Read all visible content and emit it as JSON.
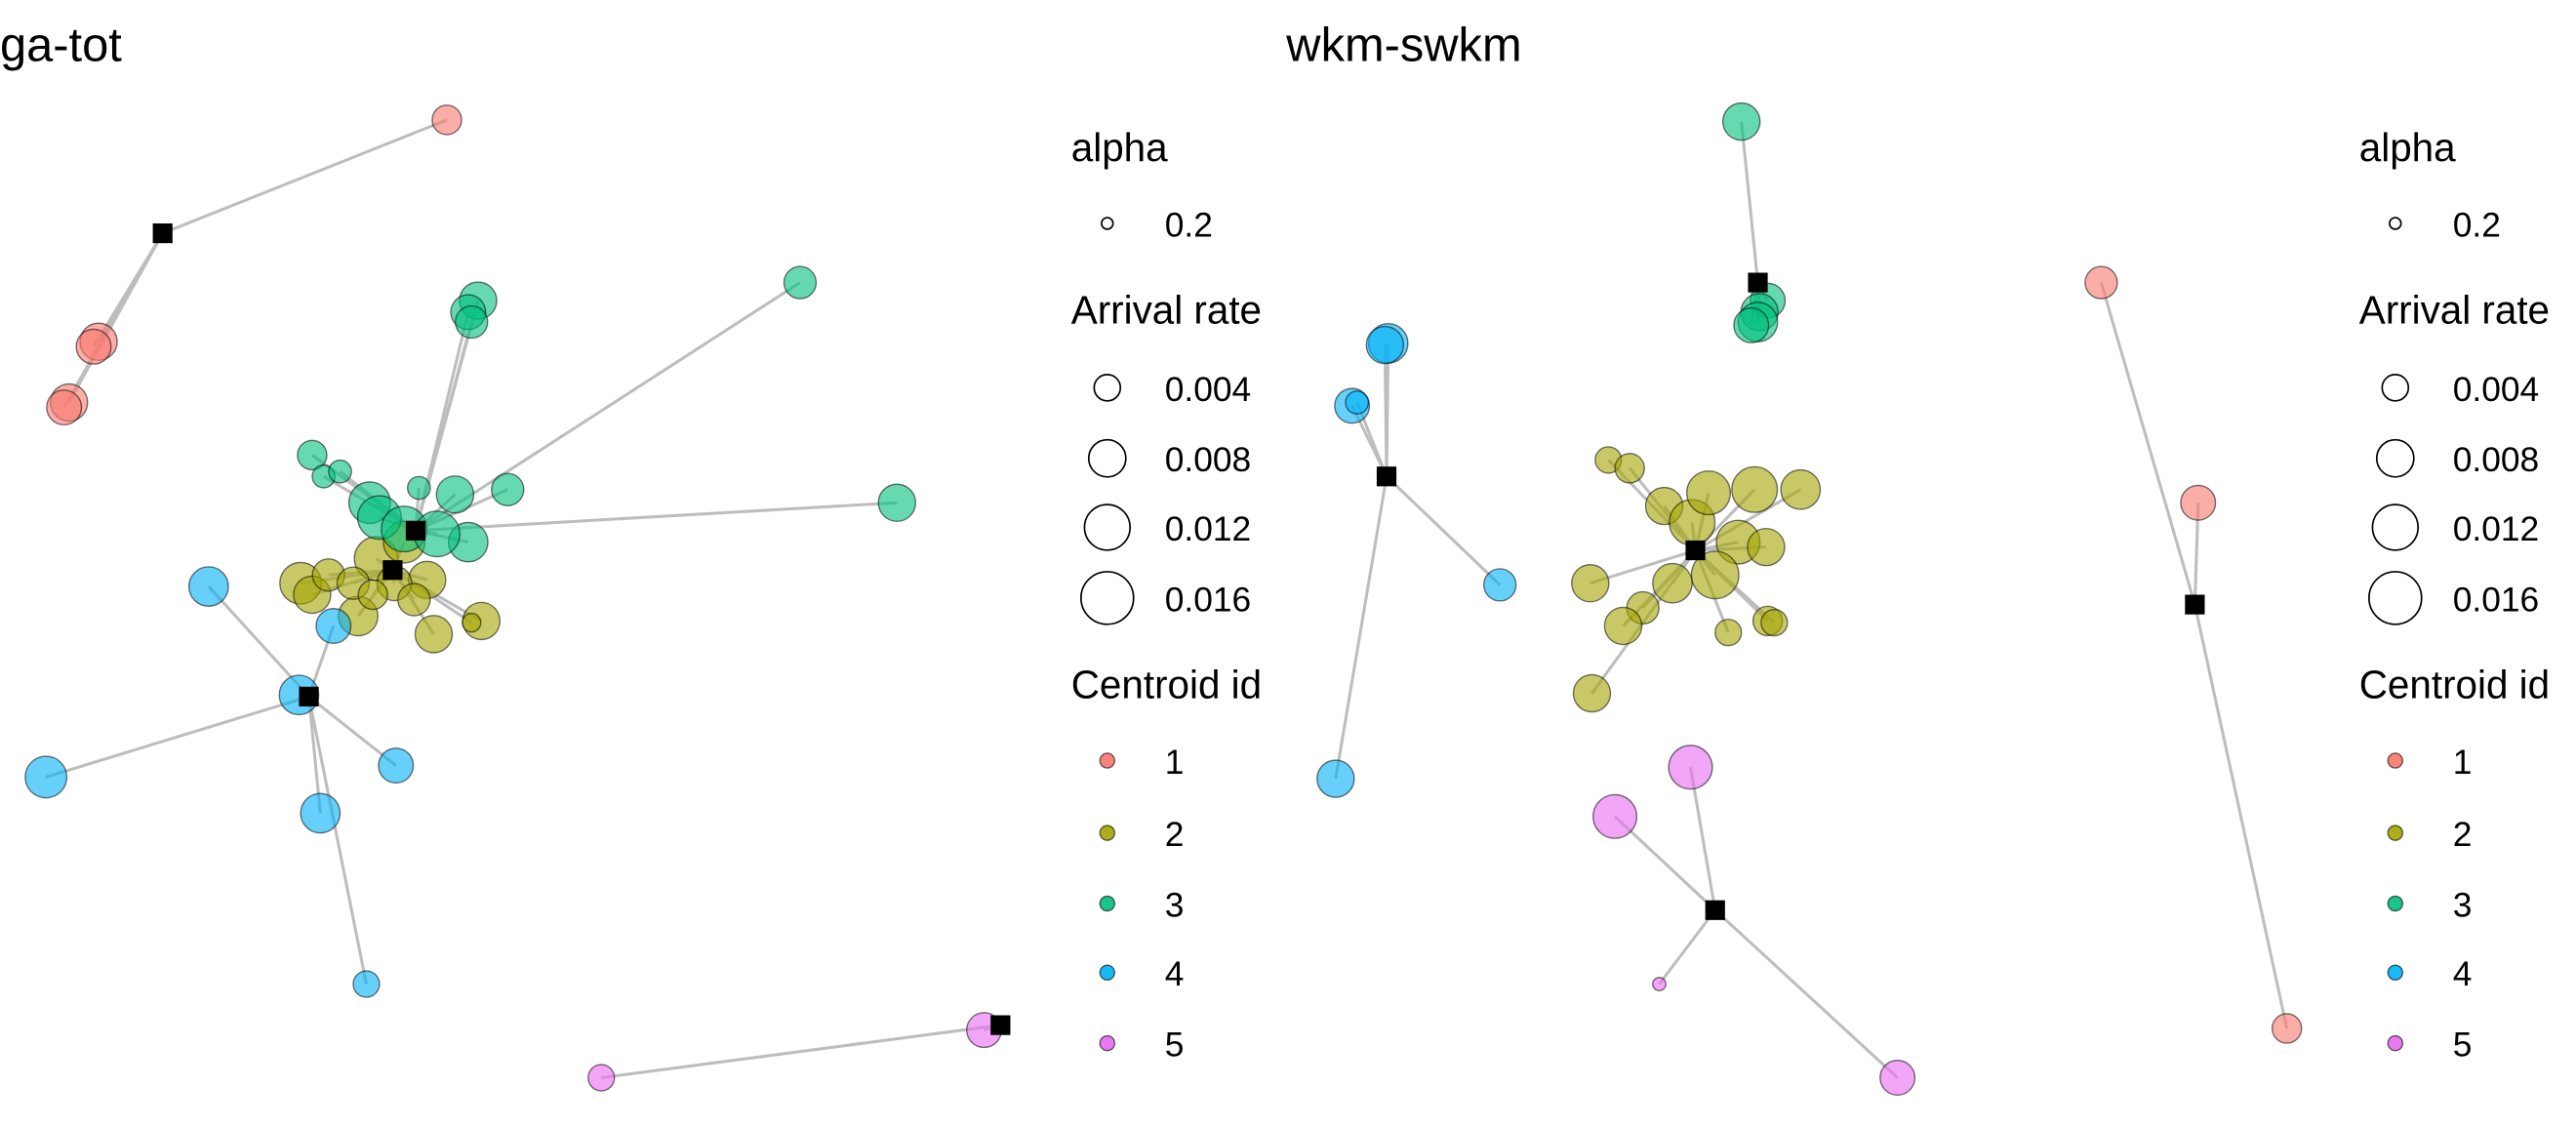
{
  "colors": {
    "centroid_1": "#F8766D",
    "centroid_2": "#A3A500",
    "centroid_3": "#00BF7D",
    "centroid_4": "#00B0F6",
    "centroid_5": "#E76BF3",
    "edge": "#bdbdbd",
    "centroid_marker": "#000000"
  },
  "legend": {
    "alpha_title": "alpha",
    "alpha_value": "0.2",
    "size_title": "Arrival rate",
    "size_entries": [
      "0.004",
      "0.008",
      "0.012",
      "0.016"
    ],
    "color_title": "Centroid id",
    "color_entries": [
      "1",
      "2",
      "3",
      "4",
      "5"
    ]
  },
  "chart_data": [
    {
      "type": "scatter",
      "title": "ga-tot",
      "xlabel": "",
      "ylabel": "",
      "grid": false,
      "axes_shown": false,
      "legend_position": "right",
      "series": [
        {
          "name": "1",
          "centroid": {
            "x": 99,
            "y": 142
          },
          "points": [
            {
              "x": 272,
              "y": 73,
              "rate": 0.005
            },
            {
              "x": 60,
              "y": 208,
              "rate": 0.008
            },
            {
              "x": 57,
              "y": 211,
              "rate": 0.007
            },
            {
              "x": 42,
              "y": 245,
              "rate": 0.008
            },
            {
              "x": 39,
              "y": 248,
              "rate": 0.007
            }
          ]
        },
        {
          "name": "2",
          "centroid": {
            "x": 239,
            "y": 347
          },
          "points": [
            {
              "x": 183,
              "y": 355,
              "rate": 0.01
            },
            {
              "x": 190,
              "y": 362,
              "rate": 0.008
            },
            {
              "x": 200,
              "y": 350,
              "rate": 0.006
            },
            {
              "x": 218,
              "y": 375,
              "rate": 0.009
            },
            {
              "x": 229,
              "y": 340,
              "rate": 0.011
            },
            {
              "x": 246,
              "y": 330,
              "rate": 0.01
            },
            {
              "x": 260,
              "y": 353,
              "rate": 0.008
            },
            {
              "x": 240,
              "y": 355,
              "rate": 0.007
            },
            {
              "x": 252,
              "y": 365,
              "rate": 0.006
            },
            {
              "x": 264,
              "y": 386,
              "rate": 0.008
            },
            {
              "x": 293,
              "y": 378,
              "rate": 0.008
            },
            {
              "x": 287,
              "y": 379,
              "rate": 0.002
            },
            {
              "x": 215,
              "y": 355,
              "rate": 0.006
            },
            {
              "x": 227,
              "y": 362,
              "rate": 0.005
            }
          ]
        },
        {
          "name": "3",
          "centroid": {
            "x": 253,
            "y": 323
          },
          "points": [
            {
              "x": 487,
              "y": 172,
              "rate": 0.006
            },
            {
              "x": 546,
              "y": 306,
              "rate": 0.008
            },
            {
              "x": 291,
              "y": 183,
              "rate": 0.008
            },
            {
              "x": 285,
              "y": 190,
              "rate": 0.007
            },
            {
              "x": 287,
              "y": 196,
              "rate": 0.006
            },
            {
              "x": 190,
              "y": 277,
              "rate": 0.005
            },
            {
              "x": 197,
              "y": 290,
              "rate": 0.003
            },
            {
              "x": 207,
              "y": 287,
              "rate": 0.003
            },
            {
              "x": 225,
              "y": 306,
              "rate": 0.01
            },
            {
              "x": 231,
              "y": 315,
              "rate": 0.011
            },
            {
              "x": 246,
              "y": 322,
              "rate": 0.012
            },
            {
              "x": 255,
              "y": 297,
              "rate": 0.003
            },
            {
              "x": 277,
              "y": 301,
              "rate": 0.008
            },
            {
              "x": 285,
              "y": 330,
              "rate": 0.009
            },
            {
              "x": 309,
              "y": 298,
              "rate": 0.006
            },
            {
              "x": 266,
              "y": 325,
              "rate": 0.012
            }
          ]
        },
        {
          "name": "4",
          "centroid": {
            "x": 188,
            "y": 424
          },
          "points": [
            {
              "x": 127,
              "y": 357,
              "rate": 0.009
            },
            {
              "x": 203,
              "y": 381,
              "rate": 0.007
            },
            {
              "x": 182,
              "y": 423,
              "rate": 0.009
            },
            {
              "x": 28,
              "y": 473,
              "rate": 0.01
            },
            {
              "x": 241,
              "y": 466,
              "rate": 0.007
            },
            {
              "x": 195,
              "y": 495,
              "rate": 0.009
            },
            {
              "x": 223,
              "y": 599,
              "rate": 0.004
            }
          ]
        },
        {
          "name": "5",
          "centroid": {
            "x": 609,
            "y": 624
          },
          "points": [
            {
              "x": 599,
              "y": 627,
              "rate": 0.007
            },
            {
              "x": 366,
              "y": 656,
              "rate": 0.004
            }
          ]
        }
      ]
    },
    {
      "type": "scatter",
      "title": "wkm-swkm",
      "xlabel": "",
      "ylabel": "",
      "grid": false,
      "axes_shown": false,
      "legend_position": "right",
      "series": [
        {
          "name": "1",
          "centroid": {
            "x": 1336,
            "y": 368
          },
          "points": [
            {
              "x": 1279,
              "y": 172,
              "rate": 0.006
            },
            {
              "x": 1338,
              "y": 306,
              "rate": 0.007
            },
            {
              "x": 1392,
              "y": 626,
              "rate": 0.005
            }
          ]
        },
        {
          "name": "2",
          "centroid": {
            "x": 1032,
            "y": 335
          },
          "points": [
            {
              "x": 979,
              "y": 280,
              "rate": 0.004
            },
            {
              "x": 992,
              "y": 285,
              "rate": 0.005
            },
            {
              "x": 1013,
              "y": 308,
              "rate": 0.008
            },
            {
              "x": 1030,
              "y": 318,
              "rate": 0.012
            },
            {
              "x": 1040,
              "y": 300,
              "rate": 0.011
            },
            {
              "x": 1068,
              "y": 298,
              "rate": 0.012
            },
            {
              "x": 1096,
              "y": 298,
              "rate": 0.009
            },
            {
              "x": 1058,
              "y": 330,
              "rate": 0.011
            },
            {
              "x": 1044,
              "y": 350,
              "rate": 0.013
            },
            {
              "x": 1075,
              "y": 333,
              "rate": 0.008
            },
            {
              "x": 1018,
              "y": 355,
              "rate": 0.009
            },
            {
              "x": 968,
              "y": 355,
              "rate": 0.008
            },
            {
              "x": 1000,
              "y": 370,
              "rate": 0.006
            },
            {
              "x": 988,
              "y": 381,
              "rate": 0.008
            },
            {
              "x": 1052,
              "y": 385,
              "rate": 0.004
            },
            {
              "x": 1076,
              "y": 378,
              "rate": 0.005
            },
            {
              "x": 1080,
              "y": 379,
              "rate": 0.004
            },
            {
              "x": 969,
              "y": 422,
              "rate": 0.008
            }
          ]
        },
        {
          "name": "3",
          "centroid": {
            "x": 1070,
            "y": 172
          },
          "points": [
            {
              "x": 1060,
              "y": 74,
              "rate": 0.008
            },
            {
              "x": 1076,
              "y": 183,
              "rate": 0.007
            },
            {
              "x": 1071,
              "y": 190,
              "rate": 0.008
            },
            {
              "x": 1070,
              "y": 196,
              "rate": 0.009
            },
            {
              "x": 1066,
              "y": 198,
              "rate": 0.007
            }
          ]
        },
        {
          "name": "4",
          "centroid": {
            "x": 844,
            "y": 290
          },
          "points": [
            {
              "x": 845,
              "y": 209,
              "rate": 0.009
            },
            {
              "x": 843,
              "y": 210,
              "rate": 0.008
            },
            {
              "x": 823,
              "y": 247,
              "rate": 0.007
            },
            {
              "x": 826,
              "y": 245,
              "rate": 0.003
            },
            {
              "x": 913,
              "y": 356,
              "rate": 0.006
            },
            {
              "x": 813,
              "y": 474,
              "rate": 0.008
            }
          ]
        },
        {
          "name": "5",
          "centroid": {
            "x": 1044,
            "y": 554
          },
          "points": [
            {
              "x": 1029,
              "y": 467,
              "rate": 0.011
            },
            {
              "x": 983,
              "y": 497,
              "rate": 0.011
            },
            {
              "x": 1010,
              "y": 599,
              "rate": 0.001
            },
            {
              "x": 1155,
              "y": 656,
              "rate": 0.007
            }
          ]
        }
      ]
    }
  ]
}
